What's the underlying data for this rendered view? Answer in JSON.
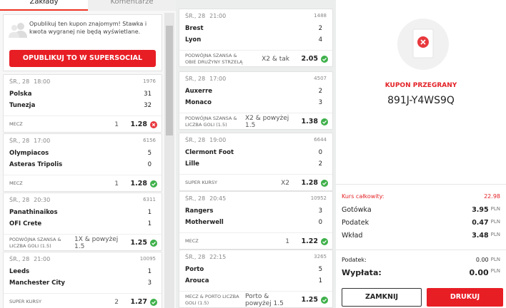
{
  "tabs": [
    "Zakłady",
    "Komentarze"
  ],
  "share": {
    "text": "Opublikuj ten kupon znajomym! Stawka i kwota wygranej nie będą wyświetlane.",
    "button": "OPUBLIKUJ TO W SUPERSOCIAL"
  },
  "columns": [
    [
      {
        "date": "ŚR., 28",
        "time": "18:00",
        "id": "1976",
        "home": "Polska",
        "home_score": "31",
        "away": "Tunezja",
        "away_score": "32",
        "market": "MECZ",
        "pick": "1",
        "odds": "1.28",
        "status": "lost"
      },
      {
        "date": "ŚR., 28",
        "time": "17:00",
        "id": "6156",
        "home": "Olympiacos",
        "home_score": "5",
        "away": "Asteras Tripolis",
        "away_score": "0",
        "market": "MECZ",
        "pick": "1",
        "odds": "1.28",
        "status": "won"
      },
      {
        "date": "ŚR., 28",
        "time": "20:30",
        "id": "6311",
        "home": "Panathinaikos",
        "home_score": "1",
        "away": "OFI Crete",
        "away_score": "1",
        "market": "PODWÓJNA SZANSA & LICZBA GOLI (1.5)",
        "pick": "1X & powyżej 1.5",
        "odds": "1.25",
        "status": "won"
      },
      {
        "date": "ŚR., 28",
        "time": "21:00",
        "id": "10095",
        "home": "Leeds",
        "home_score": "1",
        "away": "Manchester City",
        "away_score": "3",
        "market": "SUPER KURSY",
        "pick": "2",
        "odds": "1.27",
        "status": "won"
      }
    ],
    [
      {
        "date": "ŚR., 28",
        "time": "21:00",
        "id": "1488",
        "home": "Brest",
        "home_score": "2",
        "away": "Lyon",
        "away_score": "4",
        "market": "PODWÓJNA SZANSA & OBIE DRUŻYNY STRZELĄ",
        "pick": "X2 & tak",
        "odds": "2.05",
        "status": "won"
      },
      {
        "date": "ŚR., 28",
        "time": "17:00",
        "id": "4507",
        "home": "Auxerre",
        "home_score": "2",
        "away": "Monaco",
        "away_score": "3",
        "market": "PODWÓJNA SZANSA & LICZBA GOLI (1.5)",
        "pick": "X2 & powyżej 1.5",
        "odds": "1.38",
        "status": "won"
      },
      {
        "date": "ŚR., 28",
        "time": "19:00",
        "id": "6644",
        "home": "Clermont Foot",
        "home_score": "0",
        "away": "Lille",
        "away_score": "2",
        "market": "SUPER KURSY",
        "pick": "X2",
        "odds": "1.28",
        "status": "won"
      },
      {
        "date": "ŚR., 28",
        "time": "20:45",
        "id": "10952",
        "home": "Rangers",
        "home_score": "3",
        "away": "Motherwell",
        "away_score": "0",
        "market": "MECZ",
        "pick": "1",
        "odds": "1.22",
        "status": "won"
      },
      {
        "date": "ŚR., 28",
        "time": "22:15",
        "id": "3265",
        "home": "Porto",
        "home_score": "5",
        "away": "Arouca",
        "away_score": "1",
        "market": "MECZ & PORTO LICZBA GOLI (1.5)",
        "pick": "Porto & powyżej 1.5",
        "odds": "1.25",
        "status": "won"
      }
    ]
  ],
  "coupon": {
    "status": "KUPON PRZEGRANY",
    "code": "891J-Y4WS9Q",
    "currency": "PLN",
    "total_label": "Kurs całkowity:",
    "total": "22.98",
    "rows": [
      {
        "label": "Gotówka",
        "value": "3.95"
      },
      {
        "label": "Podatek",
        "value": "0.47"
      },
      {
        "label": "Wkład",
        "value": "3.48"
      }
    ],
    "tax_label": "Podatek:",
    "tax": "0.00",
    "payout_label": "Wypłata:",
    "payout": "0.00",
    "close": "ZAMKNIJ",
    "print": "DRUKUJ"
  }
}
